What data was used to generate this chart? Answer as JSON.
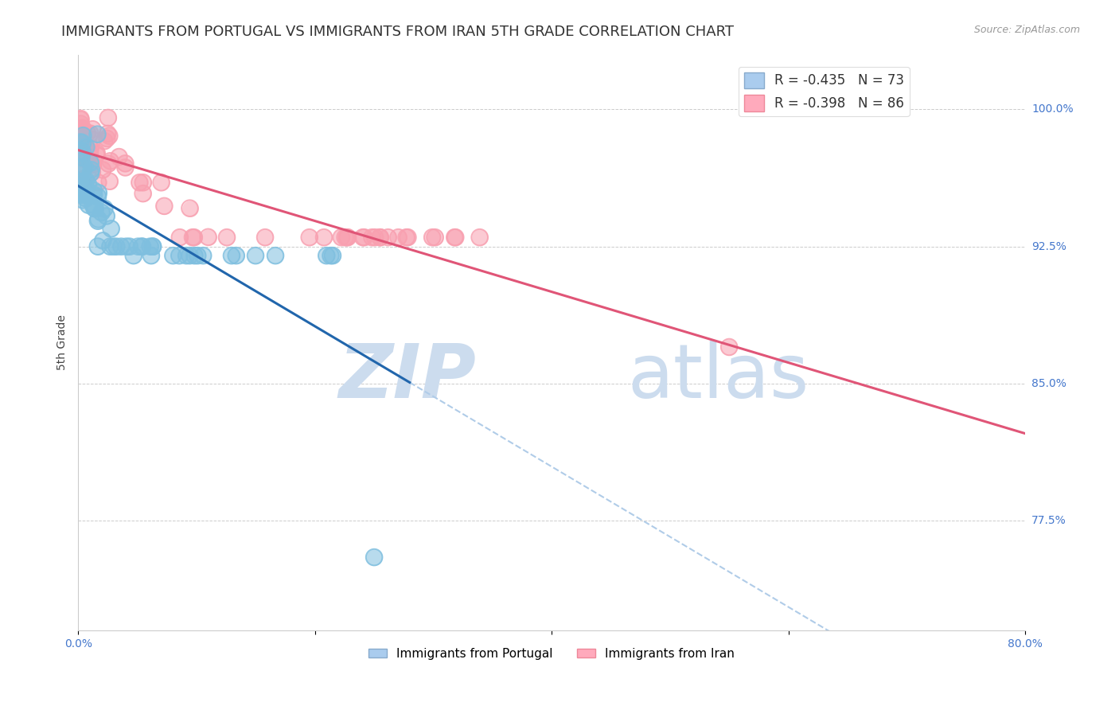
{
  "title": "IMMIGRANTS FROM PORTUGAL VS IMMIGRANTS FROM IRAN 5TH GRADE CORRELATION CHART",
  "source_text": "Source: ZipAtlas.com",
  "ylabel": "5th Grade",
  "ytick_labels": [
    "100.0%",
    "92.5%",
    "85.0%",
    "77.5%"
  ],
  "ytick_values": [
    1.0,
    0.925,
    0.85,
    0.775
  ],
  "xlim": [
    0.0,
    0.8
  ],
  "ylim": [
    0.715,
    1.03
  ],
  "legend_r1": "R = -0.435",
  "legend_n1": "N = 73",
  "legend_r2": "R = -0.398",
  "legend_n2": "N = 86",
  "color_portugal": "#7fbfdf",
  "color_iran": "#f8a0b0",
  "trend_color_portugal": "#2166ac",
  "trend_color_iran": "#e05577",
  "trend_dashed_color": "#b0cce8",
  "watermark_zip": "ZIP",
  "watermark_atlas": "atlas",
  "watermark_color": "#ccdcee",
  "background_color": "#ffffff",
  "grid_color": "#cccccc",
  "title_fontsize": 13,
  "axis_label_fontsize": 10,
  "tick_label_fontsize": 10,
  "source_fontsize": 9
}
